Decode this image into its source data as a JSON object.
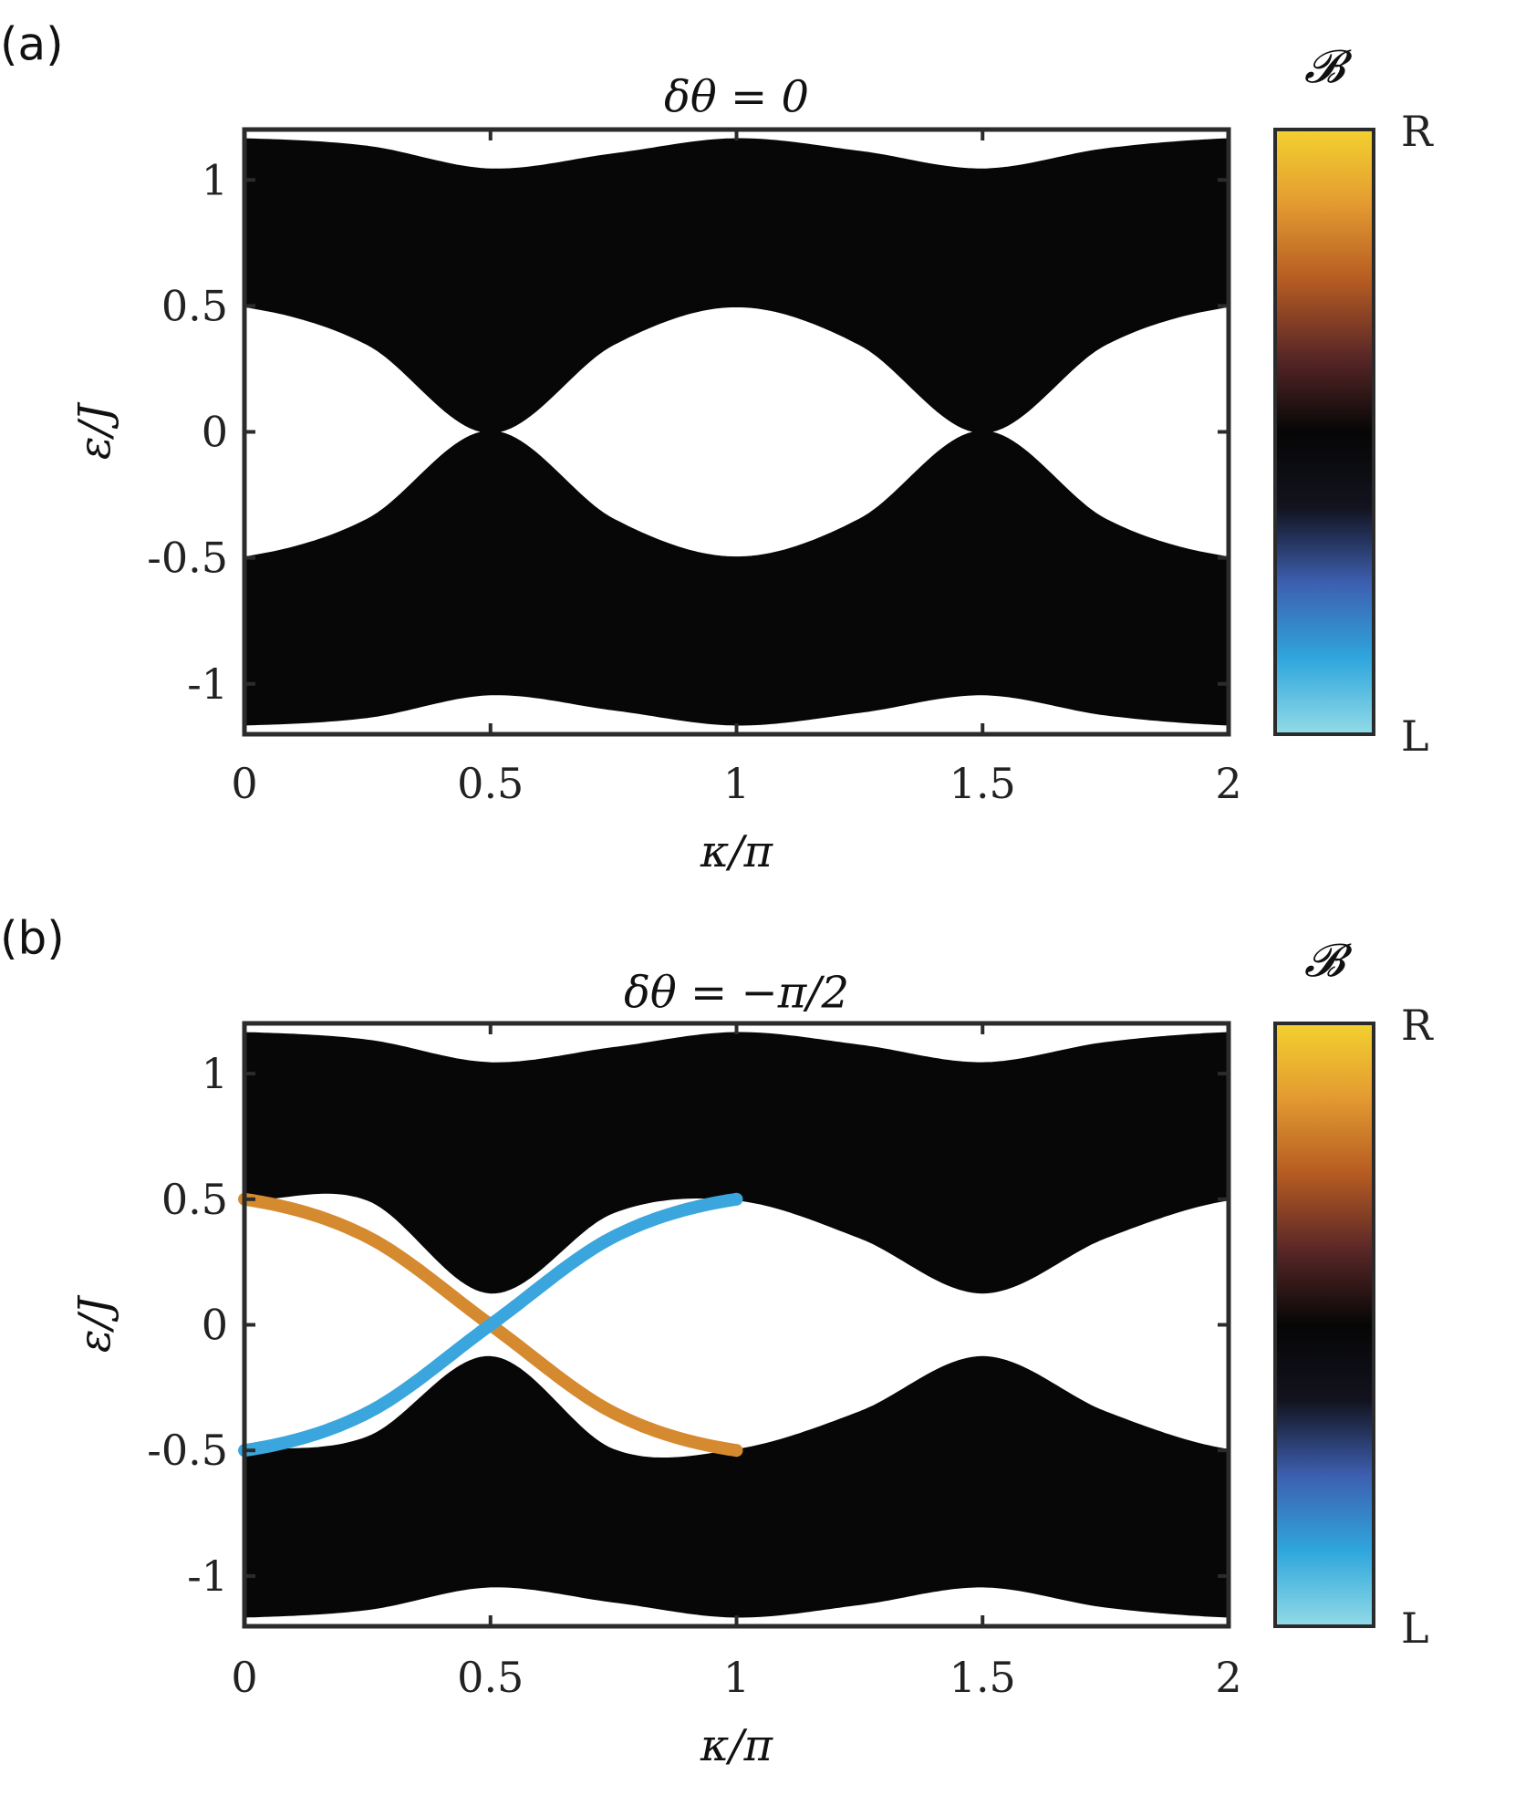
{
  "colors": {
    "band": "#070707",
    "edge_right": "#d58a2f",
    "edge_left": "#3aa6dd",
    "cmap": [
      "#92dbe6",
      "#2fa6dd",
      "#3d5fb0",
      "#12131e",
      "#060606",
      "#5a2727",
      "#b55b22",
      "#e39a31",
      "#f3d12f"
    ]
  },
  "chart_data": [
    {
      "panel_label": "(a)",
      "type": "line",
      "title": "δθ = 0",
      "xlabel": "κ/π",
      "ylabel": "ε/J",
      "xlim": [
        0,
        2
      ],
      "ylim": [
        -1.2,
        1.2
      ],
      "xticks": [
        "0",
        "0.5",
        "1",
        "1.5",
        "2"
      ],
      "yticks": [
        "-1",
        "-0.5",
        "0",
        "0.5",
        "1"
      ],
      "colorbar": {
        "title": "𝓑",
        "top_label": "R",
        "bottom_label": "L"
      },
      "x": [
        0,
        0.25,
        0.5,
        0.75,
        1,
        1.25,
        1.5,
        1.75,
        2
      ],
      "series": [
        {
          "name": "upper band top",
          "values": [
            1.16,
            1.13,
            1.04,
            1.1,
            1.16,
            1.11,
            1.04,
            1.12,
            1.16
          ]
        },
        {
          "name": "upper band bottom",
          "values": [
            0.5,
            0.35,
            0.0,
            0.35,
            0.5,
            0.35,
            0.0,
            0.35,
            0.5
          ]
        },
        {
          "name": "lower band top",
          "values": [
            -0.5,
            -0.35,
            0.0,
            -0.35,
            -0.5,
            -0.35,
            0.0,
            -0.35,
            -0.5
          ]
        },
        {
          "name": "lower band bottom",
          "values": [
            -1.16,
            -1.13,
            -1.04,
            -1.1,
            -1.16,
            -1.11,
            -1.04,
            -1.12,
            -1.16
          ]
        }
      ],
      "edge_states": []
    },
    {
      "panel_label": "(b)",
      "type": "line",
      "title": "δθ = −π/2",
      "xlabel": "κ/π",
      "ylabel": "ε/J",
      "xlim": [
        0,
        2
      ],
      "ylim": [
        -1.2,
        1.2
      ],
      "xticks": [
        "0",
        "0.5",
        "1",
        "1.5",
        "2"
      ],
      "yticks": [
        "-1",
        "-0.5",
        "0",
        "0.5",
        "1"
      ],
      "colorbar": {
        "title": "𝓑",
        "top_label": "R",
        "bottom_label": "L"
      },
      "x": [
        0,
        0.25,
        0.5,
        0.75,
        1,
        1.25,
        1.5,
        1.75,
        2
      ],
      "series": [
        {
          "name": "upper band top",
          "values": [
            1.16,
            1.13,
            1.04,
            1.1,
            1.16,
            1.11,
            1.04,
            1.12,
            1.16
          ]
        },
        {
          "name": "upper band bottom",
          "values": [
            0.5,
            0.5,
            0.13,
            0.45,
            0.5,
            0.35,
            0.13,
            0.35,
            0.5
          ]
        },
        {
          "name": "lower band top",
          "values": [
            -0.5,
            -0.45,
            -0.13,
            -0.5,
            -0.5,
            -0.35,
            -0.13,
            -0.35,
            -0.5
          ]
        },
        {
          "name": "lower band bottom",
          "values": [
            -1.16,
            -1.13,
            -1.04,
            -1.1,
            -1.16,
            -1.11,
            -1.04,
            -1.12,
            -1.16
          ]
        }
      ],
      "edge_states": [
        {
          "name": "R-polarized edge state",
          "x": [
            0,
            0.25,
            0.5,
            0.75,
            1
          ],
          "values": [
            0.5,
            0.35,
            0.0,
            -0.35,
            -0.5
          ]
        },
        {
          "name": "L-polarized edge state",
          "x": [
            0,
            0.25,
            0.5,
            0.75,
            1
          ],
          "values": [
            -0.5,
            -0.35,
            0.0,
            0.35,
            0.5
          ]
        }
      ]
    }
  ]
}
